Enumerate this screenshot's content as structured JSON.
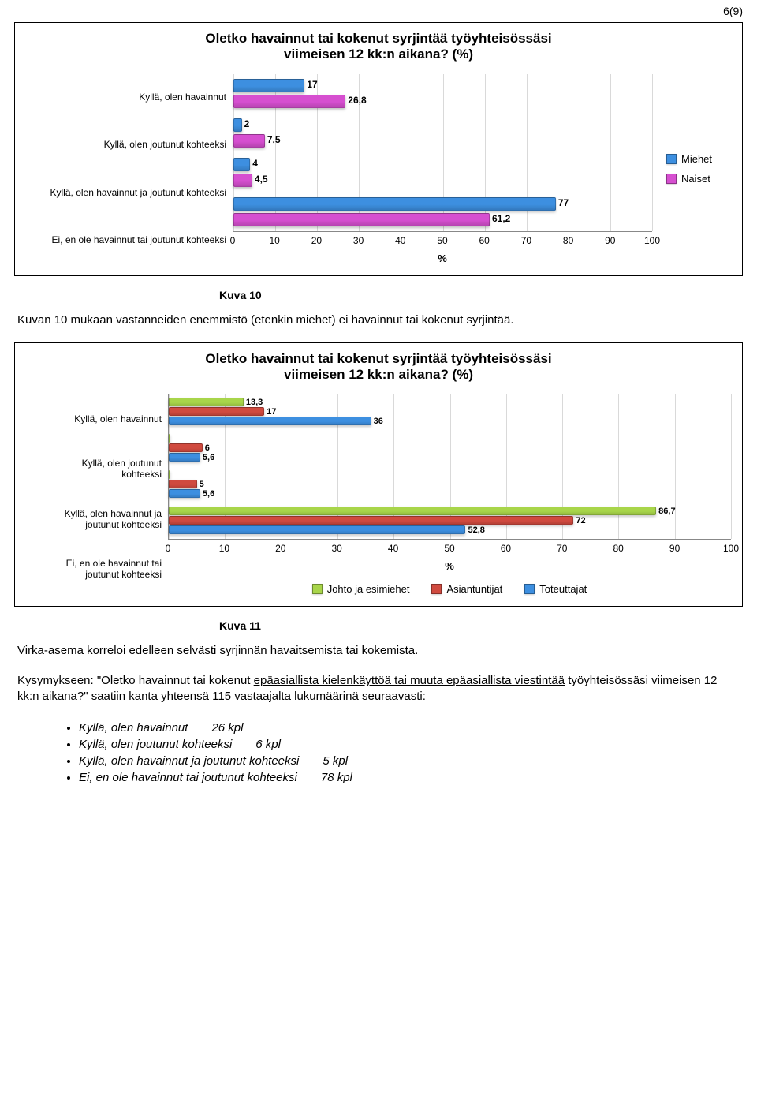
{
  "page_number": "6(9)",
  "chart1": {
    "type": "bar",
    "title_l1": "Oletko havainnut tai kokenut syrjintää työyhteisössäsi",
    "title_l2": "viimeisen 12 kk:n aikana? (%)",
    "categories": [
      "Kyllä, olen havainnut",
      "Kyllä, olen joutunut kohteeksi",
      "Kyllä, olen havainnut ja joutunut kohteeksi",
      "Ei, en ole havainnut tai joutunut kohteeksi"
    ],
    "series": [
      {
        "name": "Miehet",
        "color": "#3d8fe0",
        "values": [
          17,
          2,
          4,
          77
        ]
      },
      {
        "name": "Naiset",
        "color": "#d64fd0",
        "values": [
          26.8,
          7.5,
          4.5,
          61.2
        ]
      }
    ],
    "value_labels": [
      [
        "17",
        "26,8"
      ],
      [
        "2",
        "7,5"
      ],
      [
        "4",
        "4,5"
      ],
      [
        "77",
        "61,2"
      ]
    ],
    "xmax": 100,
    "xticks": [
      0,
      10,
      20,
      30,
      40,
      50,
      60,
      70,
      80,
      90,
      100
    ],
    "x_title": "%"
  },
  "fig1_label": "Kuva 10",
  "para1": "Kuvan 10 mukaan vastanneiden enemmistö (etenkin miehet) ei havainnut tai kokenut syrjintää.",
  "chart2": {
    "type": "bar",
    "title_l1": "Oletko havainnut tai kokenut syrjintää työyhteisössäsi",
    "title_l2": "viimeisen 12 kk:n aikana? (%)",
    "categories": [
      "Kyllä, olen havainnut",
      "Kyllä, olen joutunut kohteeksi",
      "Kyllä, olen havainnut ja joutunut kohteeksi",
      "Ei, en ole havainnut tai joutunut kohteeksi"
    ],
    "cat_display": [
      "Kyllä, olen havainnut",
      "Kyllä, olen joutunut<br>kohteeksi",
      "Kyllä, olen havainnut ja<br>joutunut kohteeksi",
      "Ei, en ole havainnut tai<br>joutunut kohteeksi"
    ],
    "series": [
      {
        "name": "Johto ja esimiehet",
        "color": "#a8d54a",
        "values": [
          13.3,
          0,
          0,
          86.7
        ]
      },
      {
        "name": "Asiantuntijat",
        "color": "#d04a3f",
        "values": [
          17,
          6,
          5,
          72
        ]
      },
      {
        "name": "Toteuttajat",
        "color": "#3d8fe0",
        "values": [
          36,
          5.6,
          5.6,
          52.8
        ]
      }
    ],
    "value_labels": [
      [
        "13,3",
        "17",
        "36"
      ],
      [
        "",
        "6",
        "5,6"
      ],
      [
        "",
        "5",
        "5,6"
      ],
      [
        "86,7",
        "72",
        "52,8"
      ]
    ],
    "xmax": 100,
    "xticks": [
      0,
      10,
      20,
      30,
      40,
      50,
      60,
      70,
      80,
      90,
      100
    ],
    "x_title": "%"
  },
  "fig2_label": "Kuva 11",
  "para2": "Virka-asema korreloi edelleen selvästi syrjinnän havaitsemista tai kokemista.",
  "para3_a": "Kysymykseen: \"Oletko havainnut tai kokenut ",
  "para3_u": "epäasiallista kielenkäyttöä tai muuta epäasiallista viestintää",
  "para3_b": " työyhteisössäsi viimeisen 12 kk:n aikana?\" saatiin kanta yhteensä 115 vastaajalta lukumäärinä seuraavasti:",
  "bullets": [
    {
      "label": "Kyllä, olen havainnut",
      "value": "26 kpl"
    },
    {
      "label": "Kyllä, olen joutunut kohteeksi",
      "value": "6 kpl"
    },
    {
      "label": "Kyllä, olen havainnut ja joutunut kohteeksi",
      "value": "5 kpl"
    },
    {
      "label": "Ei, en ole havainnut tai joutunut kohteeksi",
      "value": "78 kpl"
    }
  ]
}
